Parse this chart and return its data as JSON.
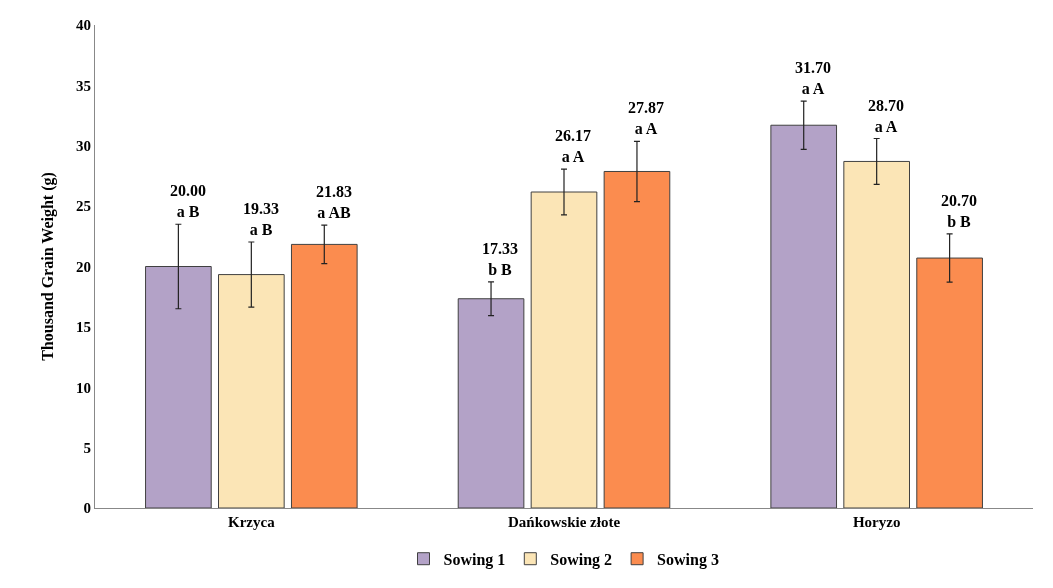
{
  "chart_data": {
    "type": "bar",
    "ylabel": "Thousand Grain Weight (g)",
    "categories": [
      "Krzyca",
      "Dańkowskie złote",
      "Horyzo"
    ],
    "series": [
      {
        "name": "Sowing 1",
        "color": "#b3a2c7",
        "values": [
          20.0,
          17.33,
          31.7
        ],
        "errors": [
          3.5,
          1.4,
          2.0
        ],
        "value_labels": [
          "20.00\na B",
          "17.33\nb B",
          "31.70\na A"
        ]
      },
      {
        "name": "Sowing 2",
        "color": "#fbe5b6",
        "values": [
          19.33,
          26.17,
          28.7
        ],
        "errors": [
          2.7,
          1.9,
          1.9
        ],
        "value_labels": [
          "19.33\na B",
          "26.17\na A",
          "28.70\na A"
        ]
      },
      {
        "name": "Sowing 3",
        "color": "#fb8c4f",
        "values": [
          21.83,
          27.87,
          20.7
        ],
        "errors": [
          1.6,
          2.5,
          2.0
        ],
        "value_labels": [
          "21.83\na AB",
          "27.87\na A",
          "20.70\nb B"
        ]
      }
    ],
    "ylim": [
      0,
      40
    ],
    "yticks": [
      0,
      5,
      10,
      15,
      20,
      25,
      30,
      35,
      40
    ],
    "grid": false,
    "legend": "bottom"
  }
}
